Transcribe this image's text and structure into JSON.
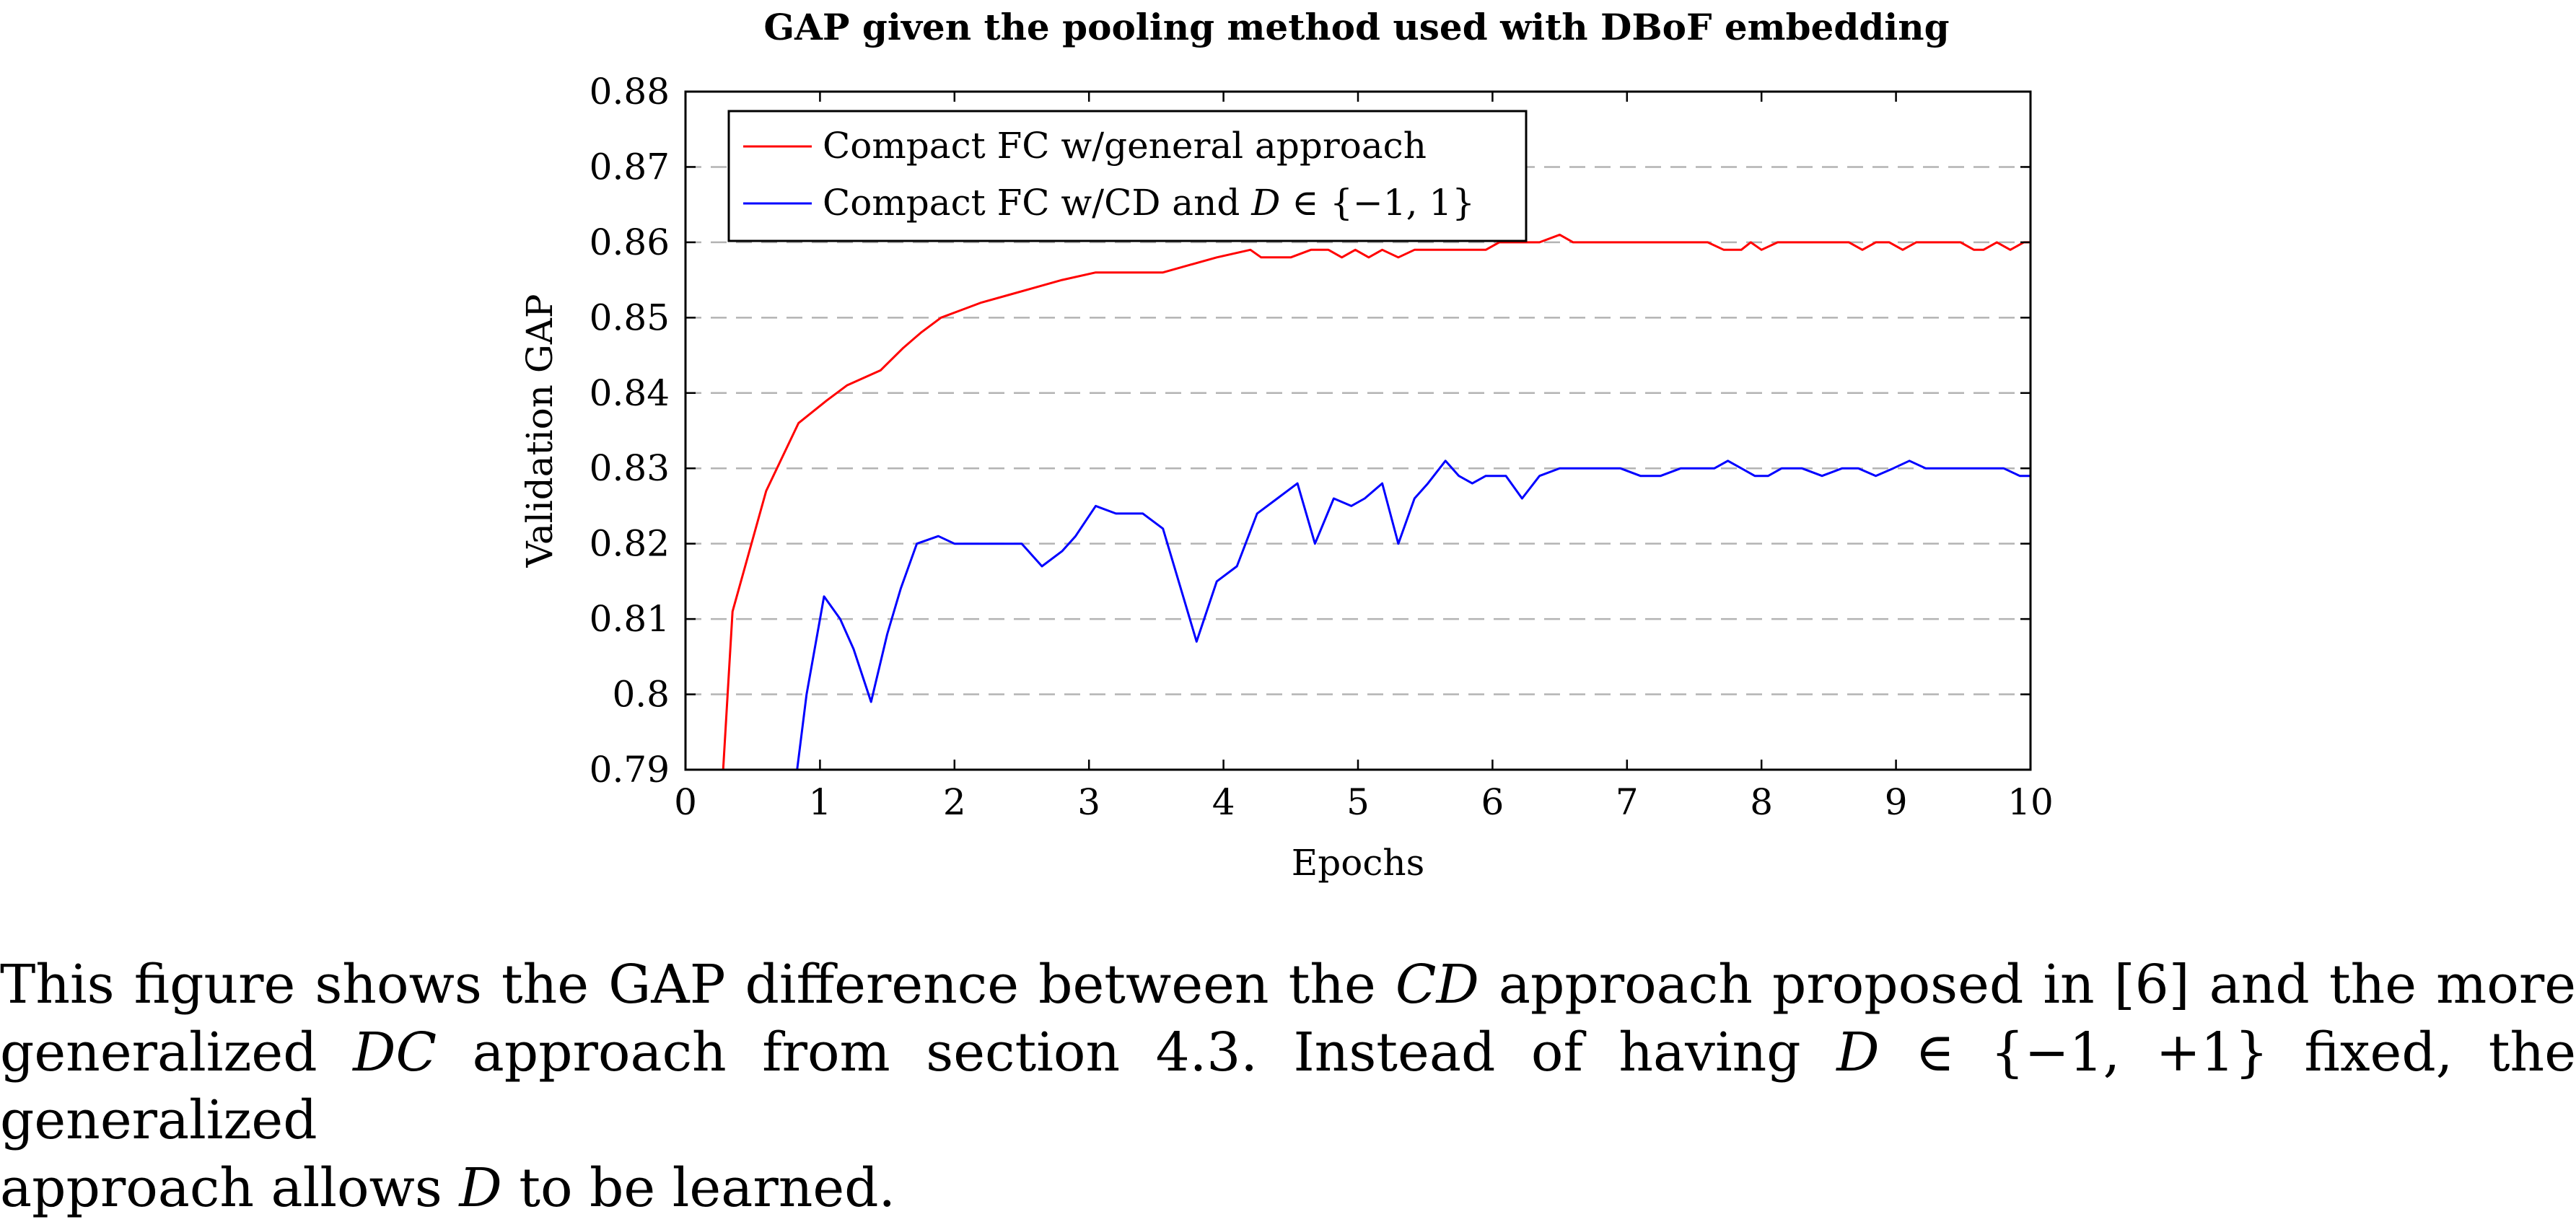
{
  "chart_data": {
    "type": "line",
    "title": "GAP given the pooling method used with DBoF embedding",
    "xlabel": "Epochs",
    "ylabel": "Validation GAP",
    "xlim": [
      0,
      10
    ],
    "ylim": [
      0.79,
      0.88
    ],
    "xticks": [
      "0",
      "1",
      "2",
      "3",
      "4",
      "5",
      "6",
      "7",
      "8",
      "9",
      "10"
    ],
    "yticks": [
      "0.79",
      "0.8",
      "0.81",
      "0.82",
      "0.83",
      "0.84",
      "0.85",
      "0.86",
      "0.87",
      "0.88"
    ],
    "grid": "horizontal dashed",
    "legend_position": "top-left",
    "series": [
      {
        "name": "Compact FC w/general approach",
        "color": "#ff0000",
        "x": [
          0.28,
          0.35,
          0.6,
          0.84,
          1.05,
          1.2,
          1.45,
          1.62,
          1.75,
          1.9,
          2.05,
          2.2,
          2.4,
          2.6,
          2.8,
          3.05,
          3.2,
          3.4,
          3.55,
          3.75,
          3.95,
          4.2,
          4.28,
          4.4,
          4.5,
          4.65,
          4.78,
          4.88,
          4.98,
          5.08,
          5.18,
          5.3,
          5.42,
          5.52,
          5.65,
          5.8,
          5.95,
          6.05,
          6.2,
          6.35,
          6.5,
          6.6,
          6.75,
          6.9,
          7.05,
          7.2,
          7.35,
          7.5,
          7.6,
          7.72,
          7.85,
          7.92,
          8.0,
          8.12,
          8.22,
          8.35,
          8.5,
          8.65,
          8.75,
          8.85,
          8.95,
          9.05,
          9.15,
          9.28,
          9.38,
          9.48,
          9.58,
          9.65,
          9.75,
          9.85,
          9.95,
          10.0
        ],
        "y": [
          0.79,
          0.811,
          0.827,
          0.836,
          0.839,
          0.841,
          0.843,
          0.846,
          0.848,
          0.85,
          0.851,
          0.852,
          0.853,
          0.854,
          0.855,
          0.856,
          0.856,
          0.856,
          0.856,
          0.857,
          0.858,
          0.859,
          0.858,
          0.858,
          0.858,
          0.859,
          0.859,
          0.858,
          0.859,
          0.858,
          0.859,
          0.858,
          0.859,
          0.859,
          0.859,
          0.859,
          0.859,
          0.86,
          0.86,
          0.86,
          0.861,
          0.86,
          0.86,
          0.86,
          0.86,
          0.86,
          0.86,
          0.86,
          0.86,
          0.859,
          0.859,
          0.86,
          0.859,
          0.86,
          0.86,
          0.86,
          0.86,
          0.86,
          0.859,
          0.86,
          0.86,
          0.859,
          0.86,
          0.86,
          0.86,
          0.86,
          0.859,
          0.859,
          0.86,
          0.859,
          0.86,
          0.86
        ]
      },
      {
        "name": "Compact FC w/CD and D ∈ {−1, 1}",
        "color": "#0000ff",
        "x": [
          0.83,
          0.9,
          1.03,
          1.15,
          1.25,
          1.38,
          1.5,
          1.6,
          1.72,
          1.88,
          2.0,
          2.15,
          2.3,
          2.5,
          2.65,
          2.8,
          2.9,
          3.05,
          3.2,
          3.4,
          3.55,
          3.7,
          3.8,
          3.95,
          4.1,
          4.25,
          4.4,
          4.55,
          4.68,
          4.82,
          4.95,
          5.05,
          5.18,
          5.3,
          5.42,
          5.52,
          5.65,
          5.75,
          5.85,
          5.95,
          6.1,
          6.22,
          6.35,
          6.5,
          6.65,
          6.8,
          6.95,
          7.1,
          7.25,
          7.4,
          7.55,
          7.65,
          7.75,
          7.85,
          7.95,
          8.05,
          8.15,
          8.3,
          8.45,
          8.6,
          8.72,
          8.85,
          8.98,
          9.1,
          9.22,
          9.35,
          9.5,
          9.65,
          9.8,
          9.92,
          10.0
        ],
        "y": [
          0.79,
          0.8,
          0.813,
          0.81,
          0.806,
          0.799,
          0.808,
          0.814,
          0.82,
          0.821,
          0.82,
          0.82,
          0.82,
          0.82,
          0.817,
          0.819,
          0.821,
          0.825,
          0.824,
          0.824,
          0.822,
          0.813,
          0.807,
          0.815,
          0.817,
          0.824,
          0.826,
          0.828,
          0.82,
          0.826,
          0.825,
          0.826,
          0.828,
          0.82,
          0.826,
          0.828,
          0.831,
          0.829,
          0.828,
          0.829,
          0.829,
          0.826,
          0.829,
          0.83,
          0.83,
          0.83,
          0.83,
          0.829,
          0.829,
          0.83,
          0.83,
          0.83,
          0.831,
          0.83,
          0.829,
          0.829,
          0.83,
          0.83,
          0.829,
          0.83,
          0.83,
          0.829,
          0.83,
          0.831,
          0.83,
          0.83,
          0.83,
          0.83,
          0.83,
          0.829,
          0.829
        ]
      }
    ]
  },
  "legend": {
    "entry1": "Compact FC w/general approach",
    "entry2_prefix": "Compact FC w/CD and ",
    "entry2_var": "D",
    "entry2_suffix": " ∈ {−1, 1}"
  },
  "caption": {
    "line1_a": "This figure shows the GAP difference between the ",
    "line1_var": "CD",
    "line1_b": " approach proposed in [6] and the more",
    "line2_a": "generalized ",
    "line2_var": "DC",
    "line2_b": " approach from section 4.3. Instead of having ",
    "line2_var2": "D",
    "line2_c": " ∈ {−1, +1} fixed, the generalized",
    "line3_a": "approach allows ",
    "line3_var": "D",
    "line3_b": " to be learned."
  }
}
